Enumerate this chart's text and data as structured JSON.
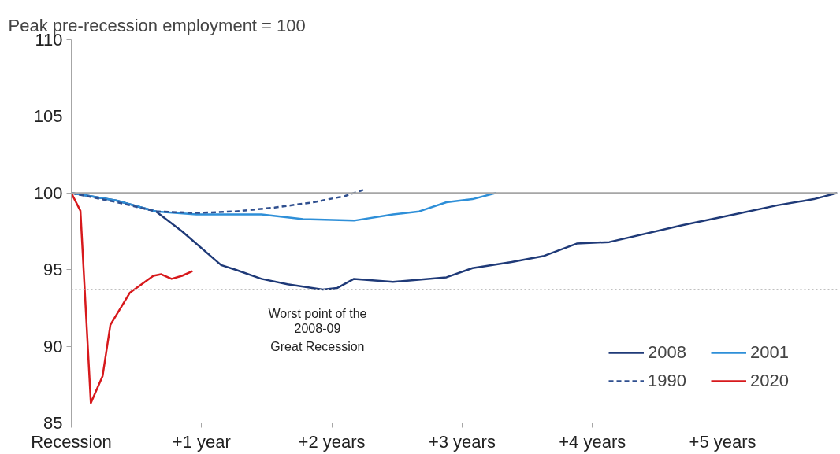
{
  "chart_data": {
    "type": "line",
    "title": "Peak pre-recession employment = 100",
    "xlim": [
      0,
      5.88
    ],
    "xticks": [
      {
        "value": 0,
        "label": "Recession"
      },
      {
        "value": 1,
        "label": "+1 year"
      },
      {
        "value": 2,
        "label": "+2 years"
      },
      {
        "value": 3,
        "label": "+3 years"
      },
      {
        "value": 4,
        "label": "+4 years"
      },
      {
        "value": 5,
        "label": "+5 years"
      }
    ],
    "ylim": [
      85,
      110
    ],
    "yticks": [
      85,
      90,
      95,
      100,
      105,
      110
    ],
    "grid": false,
    "legend": "bottom right",
    "series": [
      {
        "name": "2008",
        "color": "#1f3a78",
        "x": [
          0,
          0.35,
          0.65,
          0.85,
          1.15,
          1.26,
          1.46,
          1.66,
          1.93,
          2.04,
          2.17,
          2.47,
          2.88,
          3.08,
          3.38,
          3.63,
          3.88,
          4.13,
          4.69,
          5.09,
          5.42,
          5.7,
          5.88
        ],
        "values": [
          100,
          99.5,
          98.8,
          97.5,
          95.3,
          95.0,
          94.4,
          94.05,
          93.7,
          93.8,
          94.4,
          94.2,
          94.5,
          95.1,
          95.5,
          95.9,
          96.7,
          96.8,
          97.9,
          98.6,
          99.2,
          99.6,
          100
        ]
      },
      {
        "name": "2001",
        "color": "#2e8fd8",
        "x": [
          0,
          0.35,
          0.65,
          0.96,
          1.26,
          1.46,
          1.78,
          2.17,
          2.47,
          2.67,
          2.88,
          3.08,
          3.26
        ],
        "values": [
          100,
          99.5,
          98.8,
          98.6,
          98.6,
          98.6,
          98.3,
          98.2,
          98.6,
          98.8,
          99.4,
          99.6,
          100
        ]
      },
      {
        "name": "1990",
        "color": "#2f4f8f",
        "line_style": "dashed",
        "x": [
          0,
          0.35,
          0.65,
          0.96,
          1.26,
          1.56,
          1.86,
          2.1,
          2.24
        ],
        "values": [
          100,
          99.4,
          98.8,
          98.7,
          98.8,
          99.05,
          99.4,
          99.8,
          100.2
        ]
      },
      {
        "name": "2020",
        "color": "#d7191c",
        "x": [
          0,
          0.07,
          0.15,
          0.24,
          0.3,
          0.45,
          0.63,
          0.69,
          0.77,
          0.85,
          0.93
        ],
        "values": [
          100,
          98.84,
          86.3,
          88.05,
          91.4,
          93.5,
          94.6,
          94.7,
          94.4,
          94.6,
          94.9
        ]
      }
    ],
    "ref_lines": [
      {
        "axis": "y",
        "value": 100,
        "color": "#a6a6a6",
        "line_style": "solid"
      },
      {
        "axis": "y",
        "value": 93.7,
        "color": "#c0c0c0",
        "line_style": "dotted"
      }
    ],
    "annotations": [
      {
        "text": "Worst point of the\n2008-09\nGreat Recession",
        "x": 1.89,
        "y": 93.7
      }
    ]
  }
}
